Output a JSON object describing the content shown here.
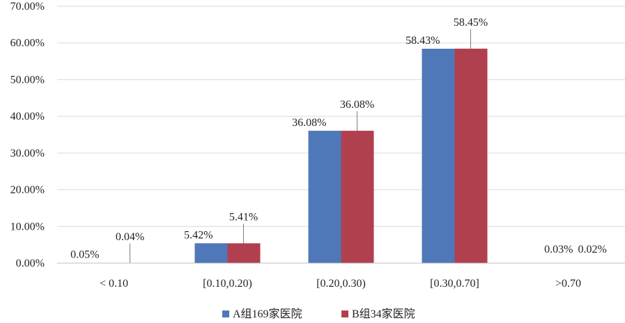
{
  "chart_data": {
    "type": "bar",
    "categories": [
      "< 0.10",
      "[0.10,0.20)",
      "[0.20,0.30)",
      "[0.30,0.70]",
      ">0.70"
    ],
    "series": [
      {
        "name": "A组169家医院",
        "color": "#4f78b8",
        "values": [
          0.05,
          5.42,
          36.08,
          58.43,
          0.03
        ],
        "labels": [
          "0.05%",
          "5.42%",
          "36.08%",
          "58.43%",
          "0.03%"
        ]
      },
      {
        "name": "B组34家医院",
        "color": "#b1404f",
        "values": [
          0.04,
          5.41,
          36.08,
          58.45,
          0.02
        ],
        "labels": [
          "0.04%",
          "5.41%",
          "36.08%",
          "58.45%",
          "0.02%"
        ]
      }
    ],
    "yticks": [
      "0.00%",
      "10.00%",
      "20.00%",
      "30.00%",
      "40.00%",
      "50.00%",
      "60.00%",
      "70.00%"
    ],
    "ylim": [
      0,
      70
    ],
    "grid": true,
    "legend_position": "bottom"
  }
}
